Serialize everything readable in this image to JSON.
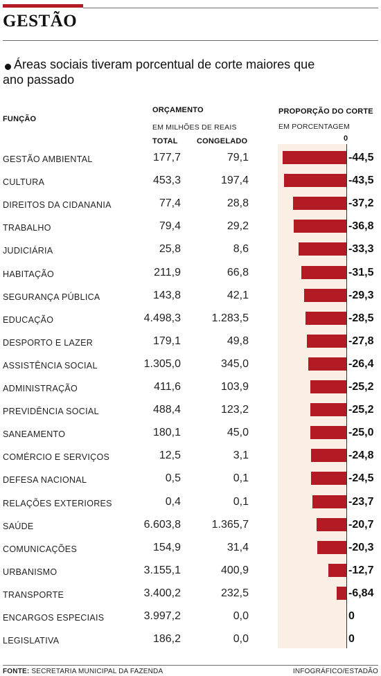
{
  "section": "GESTÃO",
  "subtitle": [
    "Áreas sociais tiveram porcentual de corte maiores que",
    "ano passado"
  ],
  "headers": {
    "funcao": "FUNÇÃO",
    "orcamento": "ORÇAMENTO",
    "orcamento_unit": "EM MILHÕES DE REAIS",
    "total": "TOTAL",
    "congelado": "CONGELADO",
    "proporcao": "PROPORÇÃO DO CORTE",
    "proporcao_unit": "EM PORCENTAGEM",
    "zero": "0"
  },
  "footer": {
    "source_label": "FONTE:",
    "source": "SECRETARIA MUNICIPAL DA FAZENDA",
    "credit": "INFOGRÁFICO/ESTADÃO"
  },
  "chart_data": {
    "type": "bar",
    "title": "Áreas sociais tiveram porcentual de corte maiores que ano passado",
    "xlim": [
      -50,
      0
    ],
    "categories": [
      "GESTÃO AMBIENTAL",
      "CULTURA",
      "DIREITOS DA CIDANANIA",
      "TRABALHO",
      "JUDICIÁRIA",
      "HABITAÇÃO",
      "SEGURANÇA PÚBLICA",
      "EDUCAÇÃO",
      "DESPORTO E LAZER",
      "ASSISTÊNCIA SOCIAL",
      "ADMINISTRAÇÃO",
      "PREVIDÊNCIA SOCIAL",
      "SANEAMENTO",
      "COMÉRCIO E SERVIÇOS",
      "DEFESA NACIONAL",
      "RELAÇÕES EXTERIORES",
      "SAÚDE",
      "COMUNICAÇÕES",
      "URBANISMO",
      "TRANSPORTE",
      "ENCARGOS ESPECIAIS",
      "LEGISLATIVA"
    ],
    "total_labels": [
      "177,7",
      "453,3",
      "77,4",
      "79,4",
      "25,8",
      "211,9",
      "143,8",
      "4.498,3",
      "179,1",
      "1.305,0",
      "411,6",
      "488,4",
      "180,1",
      "12,5",
      "0,5",
      "0,4",
      "6.603,8",
      "154,9",
      "3.155,1",
      "3.400,2",
      "3.997,2",
      "186,2"
    ],
    "congelado_labels": [
      "79,1",
      "197,4",
      "28,8",
      "29,2",
      "8,6",
      "66,8",
      "42,1",
      "1.283,5",
      "49,8",
      "345,0",
      "103,9",
      "123,2",
      "45,0",
      "3,1",
      "0,1",
      "0,1",
      "1.365,7",
      "31,4",
      "400,9",
      "232,5",
      "0,0",
      "0,0"
    ],
    "values": [
      -44.5,
      -43.5,
      -37.2,
      -36.8,
      -33.3,
      -31.5,
      -29.3,
      -28.5,
      -27.8,
      -26.4,
      -25.2,
      -25.2,
      -25.0,
      -24.8,
      -24.5,
      -23.7,
      -20.7,
      -20.3,
      -12.7,
      -6.84,
      0,
      0
    ],
    "value_labels": [
      "-44,5",
      "-43,5",
      "-37,2",
      "-36,8",
      "-33,3",
      "-31,5",
      "-29,3",
      "-28,5",
      "-27,8",
      "-26,4",
      "-25,2",
      "-25,2",
      "-25,0",
      "-24,8",
      "-24,5",
      "-23,7",
      "-20,7",
      "-20,3",
      "-12,7",
      "-6,84",
      "0",
      "0"
    ],
    "colors": {
      "bar": "#b31b24",
      "band": "#fbeee4",
      "accent": "#b31b24"
    }
  }
}
